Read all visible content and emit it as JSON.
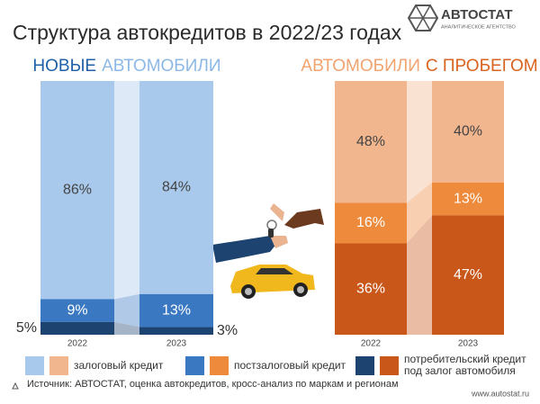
{
  "title": "Структура автокредитов в 2022/23 годах",
  "logo": {
    "name": "АВТОСТАТ",
    "tagline": "АНАЛИТИЧЕСКОЕ АГЕНТСТВО"
  },
  "chart_data": [
    {
      "type": "bar",
      "stacked": true,
      "title": [
        {
          "text": "НОВЫЕ",
          "color": "#1f5fa8"
        },
        {
          "text": "АВТОМОБИЛИ",
          "color": "#8db8e6"
        }
      ],
      "categories": [
        "2022",
        "2023"
      ],
      "ylim": [
        0,
        100
      ],
      "series": [
        {
          "name": "залоговый кредит",
          "color": "#a9c9ec",
          "values": [
            86,
            84
          ],
          "value_labels": [
            "86%",
            "84%"
          ]
        },
        {
          "name": "постзалоговый кредит",
          "color": "#3a78c2",
          "values": [
            9,
            13
          ],
          "value_labels": [
            "9%",
            "13%"
          ]
        },
        {
          "name": "потребительский кредит под залог автомобиля",
          "color": "#1d4370",
          "values": [
            5,
            3
          ],
          "value_labels": [
            "5%",
            "3%"
          ]
        }
      ]
    },
    {
      "type": "bar",
      "stacked": true,
      "title": [
        {
          "text": "АВТОМОБИЛИ",
          "color": "#f2a36f"
        },
        {
          "text": "С ПРОБЕГОМ",
          "color": "#d9631f"
        }
      ],
      "categories": [
        "2022",
        "2023"
      ],
      "ylim": [
        0,
        100
      ],
      "series": [
        {
          "color": "#f2b68e",
          "values": [
            48,
            40
          ],
          "value_labels": [
            "48%",
            "40%"
          ]
        },
        {
          "color": "#ee8a3c",
          "values": [
            16,
            13
          ],
          "value_labels": [
            "16%",
            "13%"
          ]
        },
        {
          "color": "#c9571a",
          "values": [
            36,
            47
          ],
          "value_labels": [
            "36%",
            "47%"
          ]
        }
      ]
    }
  ],
  "source": "Источник: АВТОСТАТ, оценка автокредитов, кросс-анализ по маркам и регионам",
  "url": "www.autostat.ru"
}
